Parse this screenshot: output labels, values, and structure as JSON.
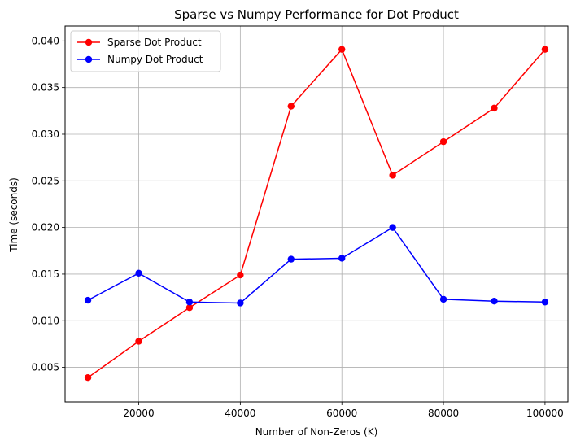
{
  "chart_data": {
    "type": "line",
    "title": "Sparse vs Numpy Performance for Dot Product",
    "xlabel": "Number of Non-Zeros (K)",
    "ylabel": "Time (seconds)",
    "x": [
      10000,
      20000,
      30000,
      40000,
      50000,
      60000,
      70000,
      80000,
      90000,
      100000
    ],
    "xlim": [
      5500,
      104500
    ],
    "ylim": [
      0.0013,
      0.0416
    ],
    "xticks": [
      20000,
      40000,
      60000,
      80000,
      100000
    ],
    "yticks": [
      0.005,
      0.01,
      0.015,
      0.02,
      0.025,
      0.03,
      0.035,
      0.04
    ],
    "xtick_labels": [
      "20000",
      "40000",
      "60000",
      "80000",
      "100000"
    ],
    "ytick_labels": [
      "0.005",
      "0.010",
      "0.015",
      "0.020",
      "0.025",
      "0.030",
      "0.035",
      "0.040"
    ],
    "grid": true,
    "legend_position": "upper-left",
    "series": [
      {
        "name": "Sparse Dot Product",
        "color": "#ff0000",
        "marker": "circle",
        "values": [
          0.0039,
          0.0078,
          0.0114,
          0.0149,
          0.033,
          0.0391,
          0.0256,
          0.0292,
          0.0328,
          0.0391
        ]
      },
      {
        "name": "Numpy Dot Product",
        "color": "#0000ff",
        "marker": "circle",
        "values": [
          0.0122,
          0.0151,
          0.012,
          0.0119,
          0.0166,
          0.0167,
          0.02,
          0.0123,
          0.0121,
          0.012
        ]
      }
    ]
  }
}
